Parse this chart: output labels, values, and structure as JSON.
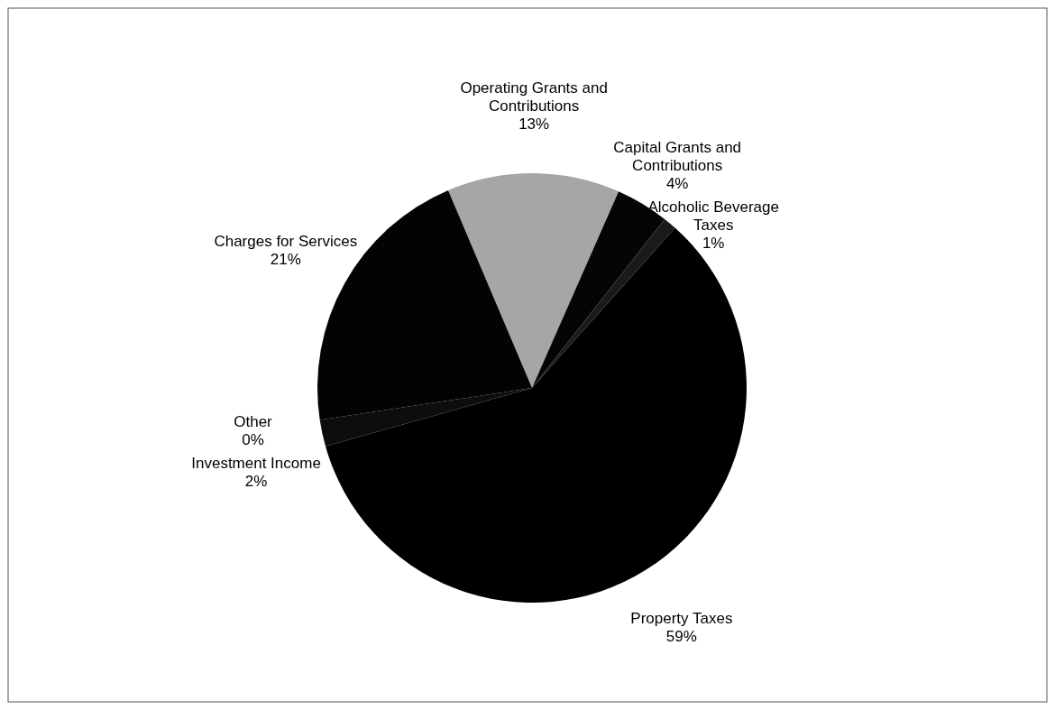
{
  "chart_data": {
    "type": "pie",
    "categories": [
      "Operating Grants and Contributions",
      "Capital Grants and Contributions",
      "Alcoholic Beverage Taxes",
      "Property Taxes",
      "Investment Income",
      "Other",
      "Charges for Services"
    ],
    "values": [
      13,
      4,
      1,
      59,
      2,
      0,
      21
    ],
    "value_labels": [
      "13%",
      "4%",
      "1%",
      "59%",
      "2%",
      "0%",
      "21%"
    ],
    "colors": [
      "#a6a6a6",
      "#050505",
      "#1a1a1a",
      "#000000",
      "#0d0d0d",
      "#ffffff",
      "#030303"
    ]
  }
}
